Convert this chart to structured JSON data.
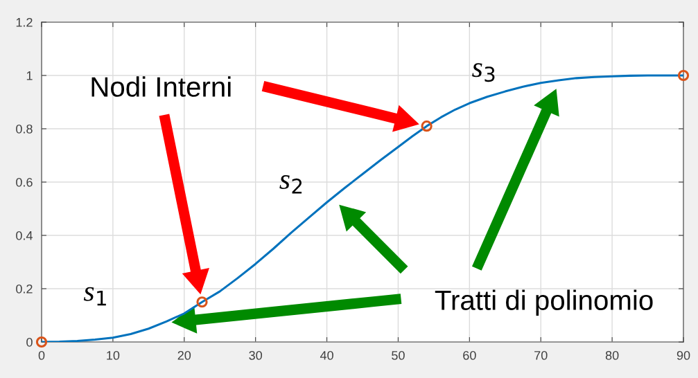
{
  "chart_data": {
    "type": "line",
    "xlim": [
      0,
      90
    ],
    "ylim": [
      0,
      1.2
    ],
    "xticks": [
      0,
      10,
      20,
      30,
      40,
      50,
      60,
      70,
      80,
      90
    ],
    "yticks": [
      0,
      0.2,
      0.4,
      0.6,
      0.8,
      1,
      1.2
    ],
    "grid": true,
    "legend": false,
    "series": [
      {
        "color": "#0072bd",
        "marker": "none",
        "x": [
          0,
          2.5,
          5,
          7.5,
          10,
          12.5,
          15,
          17.5,
          20,
          22.5,
          25,
          27.5,
          30,
          32.5,
          35,
          37.5,
          40,
          42.5,
          45,
          47.5,
          50,
          52,
          54,
          56,
          58,
          60,
          62.5,
          65,
          67.5,
          70,
          72.5,
          75,
          77.5,
          80,
          82.5,
          85,
          87.5,
          90
        ],
        "values": [
          0,
          0.001,
          0.004,
          0.009,
          0.016,
          0.03,
          0.05,
          0.077,
          0.107,
          0.15,
          0.19,
          0.24,
          0.293,
          0.35,
          0.41,
          0.467,
          0.524,
          0.578,
          0.63,
          0.682,
          0.732,
          0.772,
          0.81,
          0.843,
          0.872,
          0.896,
          0.92,
          0.94,
          0.958,
          0.972,
          0.982,
          0.99,
          0.994,
          0.997,
          0.999,
          1,
          1,
          1
        ]
      },
      {
        "type": "scatter",
        "color": "#d95319",
        "marker": "circle",
        "x": [
          0,
          22.5,
          54,
          90
        ],
        "values": [
          0,
          0.15,
          0.81,
          1
        ]
      }
    ],
    "annotations": [
      "Nodi Interni",
      "Tratti di polinomio",
      "s$_{1}$",
      "s$_{2}$",
      "s$_{3}$"
    ]
  }
}
